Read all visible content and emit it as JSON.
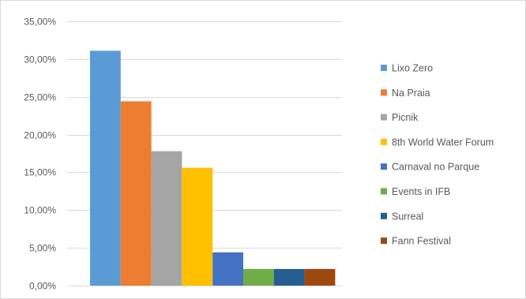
{
  "chart_data": {
    "type": "bar",
    "categories": [
      "Lixo Zero",
      "Na Praia",
      "Picnik",
      "8th World Water Forum",
      "Carnaval no Parque",
      "Events in IFB",
      "Surreal",
      "Fann Festival"
    ],
    "series": [
      {
        "values": [
          31.1,
          24.4,
          17.8,
          15.6,
          4.4,
          2.2,
          2.2,
          2.2
        ]
      }
    ],
    "colors": [
      "#5b9bd5",
      "#ed7d31",
      "#a5a5a5",
      "#ffc000",
      "#4472c4",
      "#70ad47",
      "#255e91",
      "#9e480e"
    ],
    "ylim": [
      0,
      35
    ],
    "yticks": [
      0,
      5,
      10,
      15,
      20,
      25,
      30,
      35
    ],
    "ytick_labels": [
      "0,00%",
      "5,00%",
      "10,00%",
      "15,00%",
      "20,00%",
      "25,00%",
      "30,00%",
      "35,00%"
    ],
    "grid": true,
    "legend": {
      "position": "right",
      "entries": [
        "Lixo Zero",
        "Na Praia",
        "Picnik",
        "8th World Water Forum",
        "Carnaval no Parque",
        "Events in IFB",
        "Surreal",
        "Fann Festival"
      ]
    }
  }
}
